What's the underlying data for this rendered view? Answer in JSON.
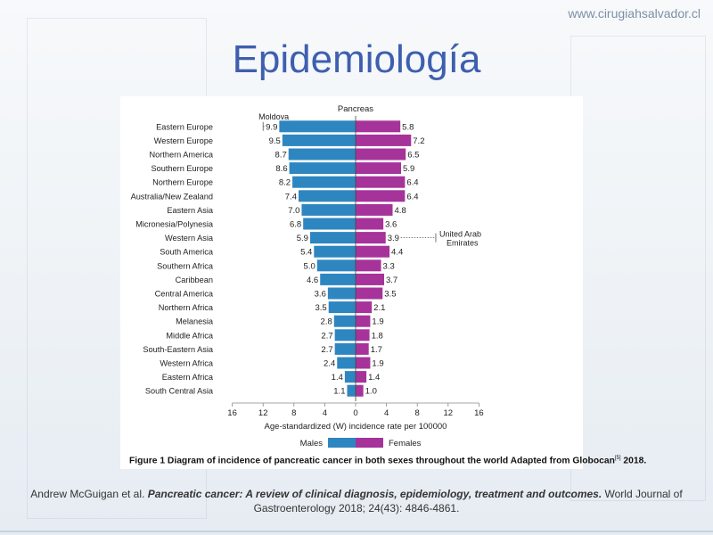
{
  "header": {
    "site_url": "www.cirugiahsalvador.cl"
  },
  "slide": {
    "title": "Epidemiología"
  },
  "figure": {
    "caption_text": "Figure 1  Diagram of incidence of pancreatic cancer in both sexes throughout the world Adapted from Globocan",
    "caption_sup": "[5]",
    "caption_tail": " 2018."
  },
  "citation": {
    "authors": "Andrew  McGuigan  et al. ",
    "title": "Pancreatic cancer: A review of clinical diagnosis,  epidemiology,  treatment and outcomes.",
    "source": " World Journal of Gastroenterology 2018; 24(43): 4846-4861."
  },
  "colors": {
    "male": "#2e86c1",
    "female": "#a63399",
    "title": "#3f5fae"
  },
  "chart_data": {
    "type": "bar",
    "orientation": "horizontal-population-pyramid",
    "title": "Pancreas",
    "xlabel": "Age-standardized (W) incidence rate per 100000",
    "xlim": [
      -16,
      16
    ],
    "x_ticks": [
      16,
      12,
      8,
      4,
      0,
      4,
      8,
      12,
      16
    ],
    "categories": [
      "Eastern Europe",
      "Western Europe",
      "Northern America",
      "Southern Europe",
      "Northern Europe",
      "Australia/New Zealand",
      "Eastern Asia",
      "Micronesia/Polynesia",
      "Western Asia",
      "South America",
      "Southern Africa",
      "Caribbean",
      "Central America",
      "Northern Africa",
      "Melanesia",
      "Middle Africa",
      "South-Eastern Asia",
      "Western Africa",
      "Eastern Africa",
      "South Central Asia"
    ],
    "series": [
      {
        "name": "Males",
        "color": "#2e86c1",
        "values": [
          9.9,
          9.5,
          8.7,
          8.6,
          8.2,
          7.4,
          7.0,
          6.8,
          5.9,
          5.4,
          5.0,
          4.6,
          3.6,
          3.5,
          2.8,
          2.7,
          2.7,
          2.4,
          1.4,
          1.1
        ]
      },
      {
        "name": "Females",
        "color": "#a63399",
        "values": [
          5.8,
          7.2,
          6.5,
          5.9,
          6.4,
          6.4,
          4.8,
          3.6,
          3.9,
          4.4,
          3.3,
          3.7,
          3.5,
          2.1,
          1.9,
          1.8,
          1.7,
          1.9,
          1.4,
          1.0
        ]
      }
    ],
    "annotations": [
      {
        "text": "Moldova",
        "series": "Males",
        "category": "Eastern Europe",
        "value": 12
      },
      {
        "text": "United Arab Emirates",
        "series": "Females",
        "category": "Western Asia",
        "value": 10.4
      }
    ],
    "legend": {
      "placement": "bottom-center"
    },
    "grid": false
  }
}
